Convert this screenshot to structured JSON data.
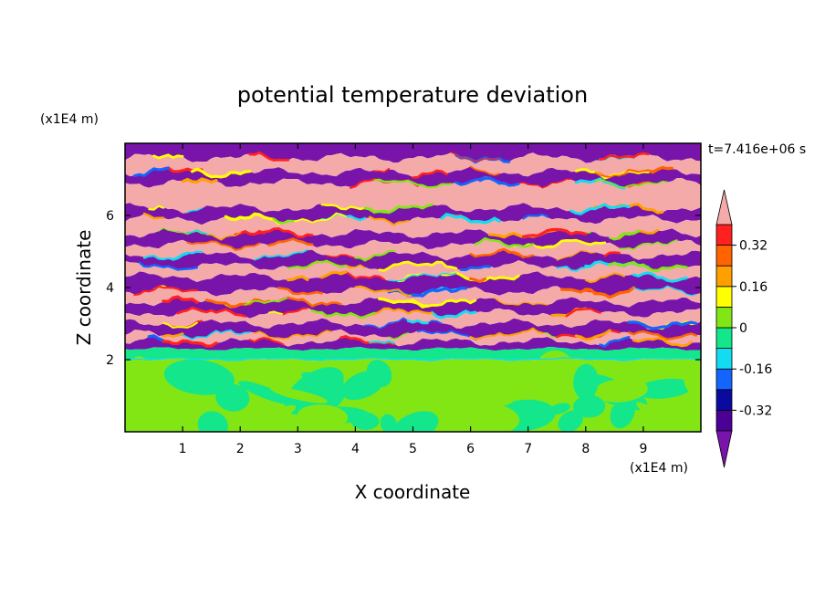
{
  "chart_data": {
    "type": "heatmap",
    "title": "potential temperature deviation",
    "time_label": "t=7.416e+06 s",
    "xlabel": "X coordinate",
    "ylabel": "Z coordinate",
    "x_unit_label": "(x1E4 m)",
    "y_unit_label": "(x1E4 m)",
    "xlim": [
      0,
      10
    ],
    "ylim": [
      0,
      8
    ],
    "x_ticks": [
      "1",
      "2",
      "3",
      "4",
      "5",
      "6",
      "7",
      "8",
      "9"
    ],
    "y_ticks": [
      "2",
      "4",
      "6"
    ],
    "colorbar": {
      "tick_labels": [
        "0.32",
        "0.16",
        "0",
        "-0.16",
        "-0.32"
      ],
      "tick_values": [
        0.32,
        0.16,
        0,
        -0.16,
        -0.32
      ],
      "levels": [
        -0.4,
        -0.32,
        -0.24,
        -0.16,
        -0.08,
        0,
        0.08,
        0.16,
        0.24,
        0.32,
        0.4
      ],
      "colors": [
        "#4b0096",
        "#0a0aa0",
        "#1464ff",
        "#14dcf0",
        "#14e68c",
        "#82e614",
        "#ffff00",
        "#ffa000",
        "#ff6400",
        "#ff2020"
      ],
      "under_color": "#7814aa",
      "over_color": "#f5aaaa",
      "extend": "both"
    },
    "colors": {
      "purple_band": "#7814aa",
      "pink_band": "#f5aaaa",
      "lower_green": "#14e68c",
      "lower_lime": "#82e614"
    },
    "bands": [
      {
        "z0": 7.6,
        "z1": 8.0,
        "value": -0.5
      },
      {
        "z0": 7.2,
        "z1": 7.6,
        "value": 0.5
      },
      {
        "z0": 6.9,
        "z1": 7.2,
        "value": -0.5
      },
      {
        "z0": 6.2,
        "z1": 6.9,
        "value": 0.5
      },
      {
        "z0": 5.9,
        "z1": 6.2,
        "value": -0.5
      },
      {
        "z0": 5.5,
        "z1": 5.9,
        "value": 0.5
      },
      {
        "z0": 5.2,
        "z1": 5.5,
        "value": -0.5
      },
      {
        "z0": 4.9,
        "z1": 5.2,
        "value": 0.5
      },
      {
        "z0": 4.6,
        "z1": 4.9,
        "value": -0.5
      },
      {
        "z0": 4.3,
        "z1": 4.6,
        "value": 0.5
      },
      {
        "z0": 3.9,
        "z1": 4.3,
        "value": -0.5
      },
      {
        "z0": 3.6,
        "z1": 3.9,
        "value": 0.5
      },
      {
        "z0": 3.3,
        "z1": 3.6,
        "value": -0.5
      },
      {
        "z0": 3.0,
        "z1": 3.3,
        "value": 0.5
      },
      {
        "z0": 2.7,
        "z1": 3.0,
        "value": -0.5
      },
      {
        "z0": 2.5,
        "z1": 2.7,
        "value": 0.5
      },
      {
        "z0": 2.3,
        "z1": 2.5,
        "value": -0.5
      },
      {
        "z0": 2.0,
        "z1": 2.3,
        "value": -0.05
      },
      {
        "z0": 0.0,
        "z1": 2.0,
        "value": 0.02
      }
    ]
  }
}
